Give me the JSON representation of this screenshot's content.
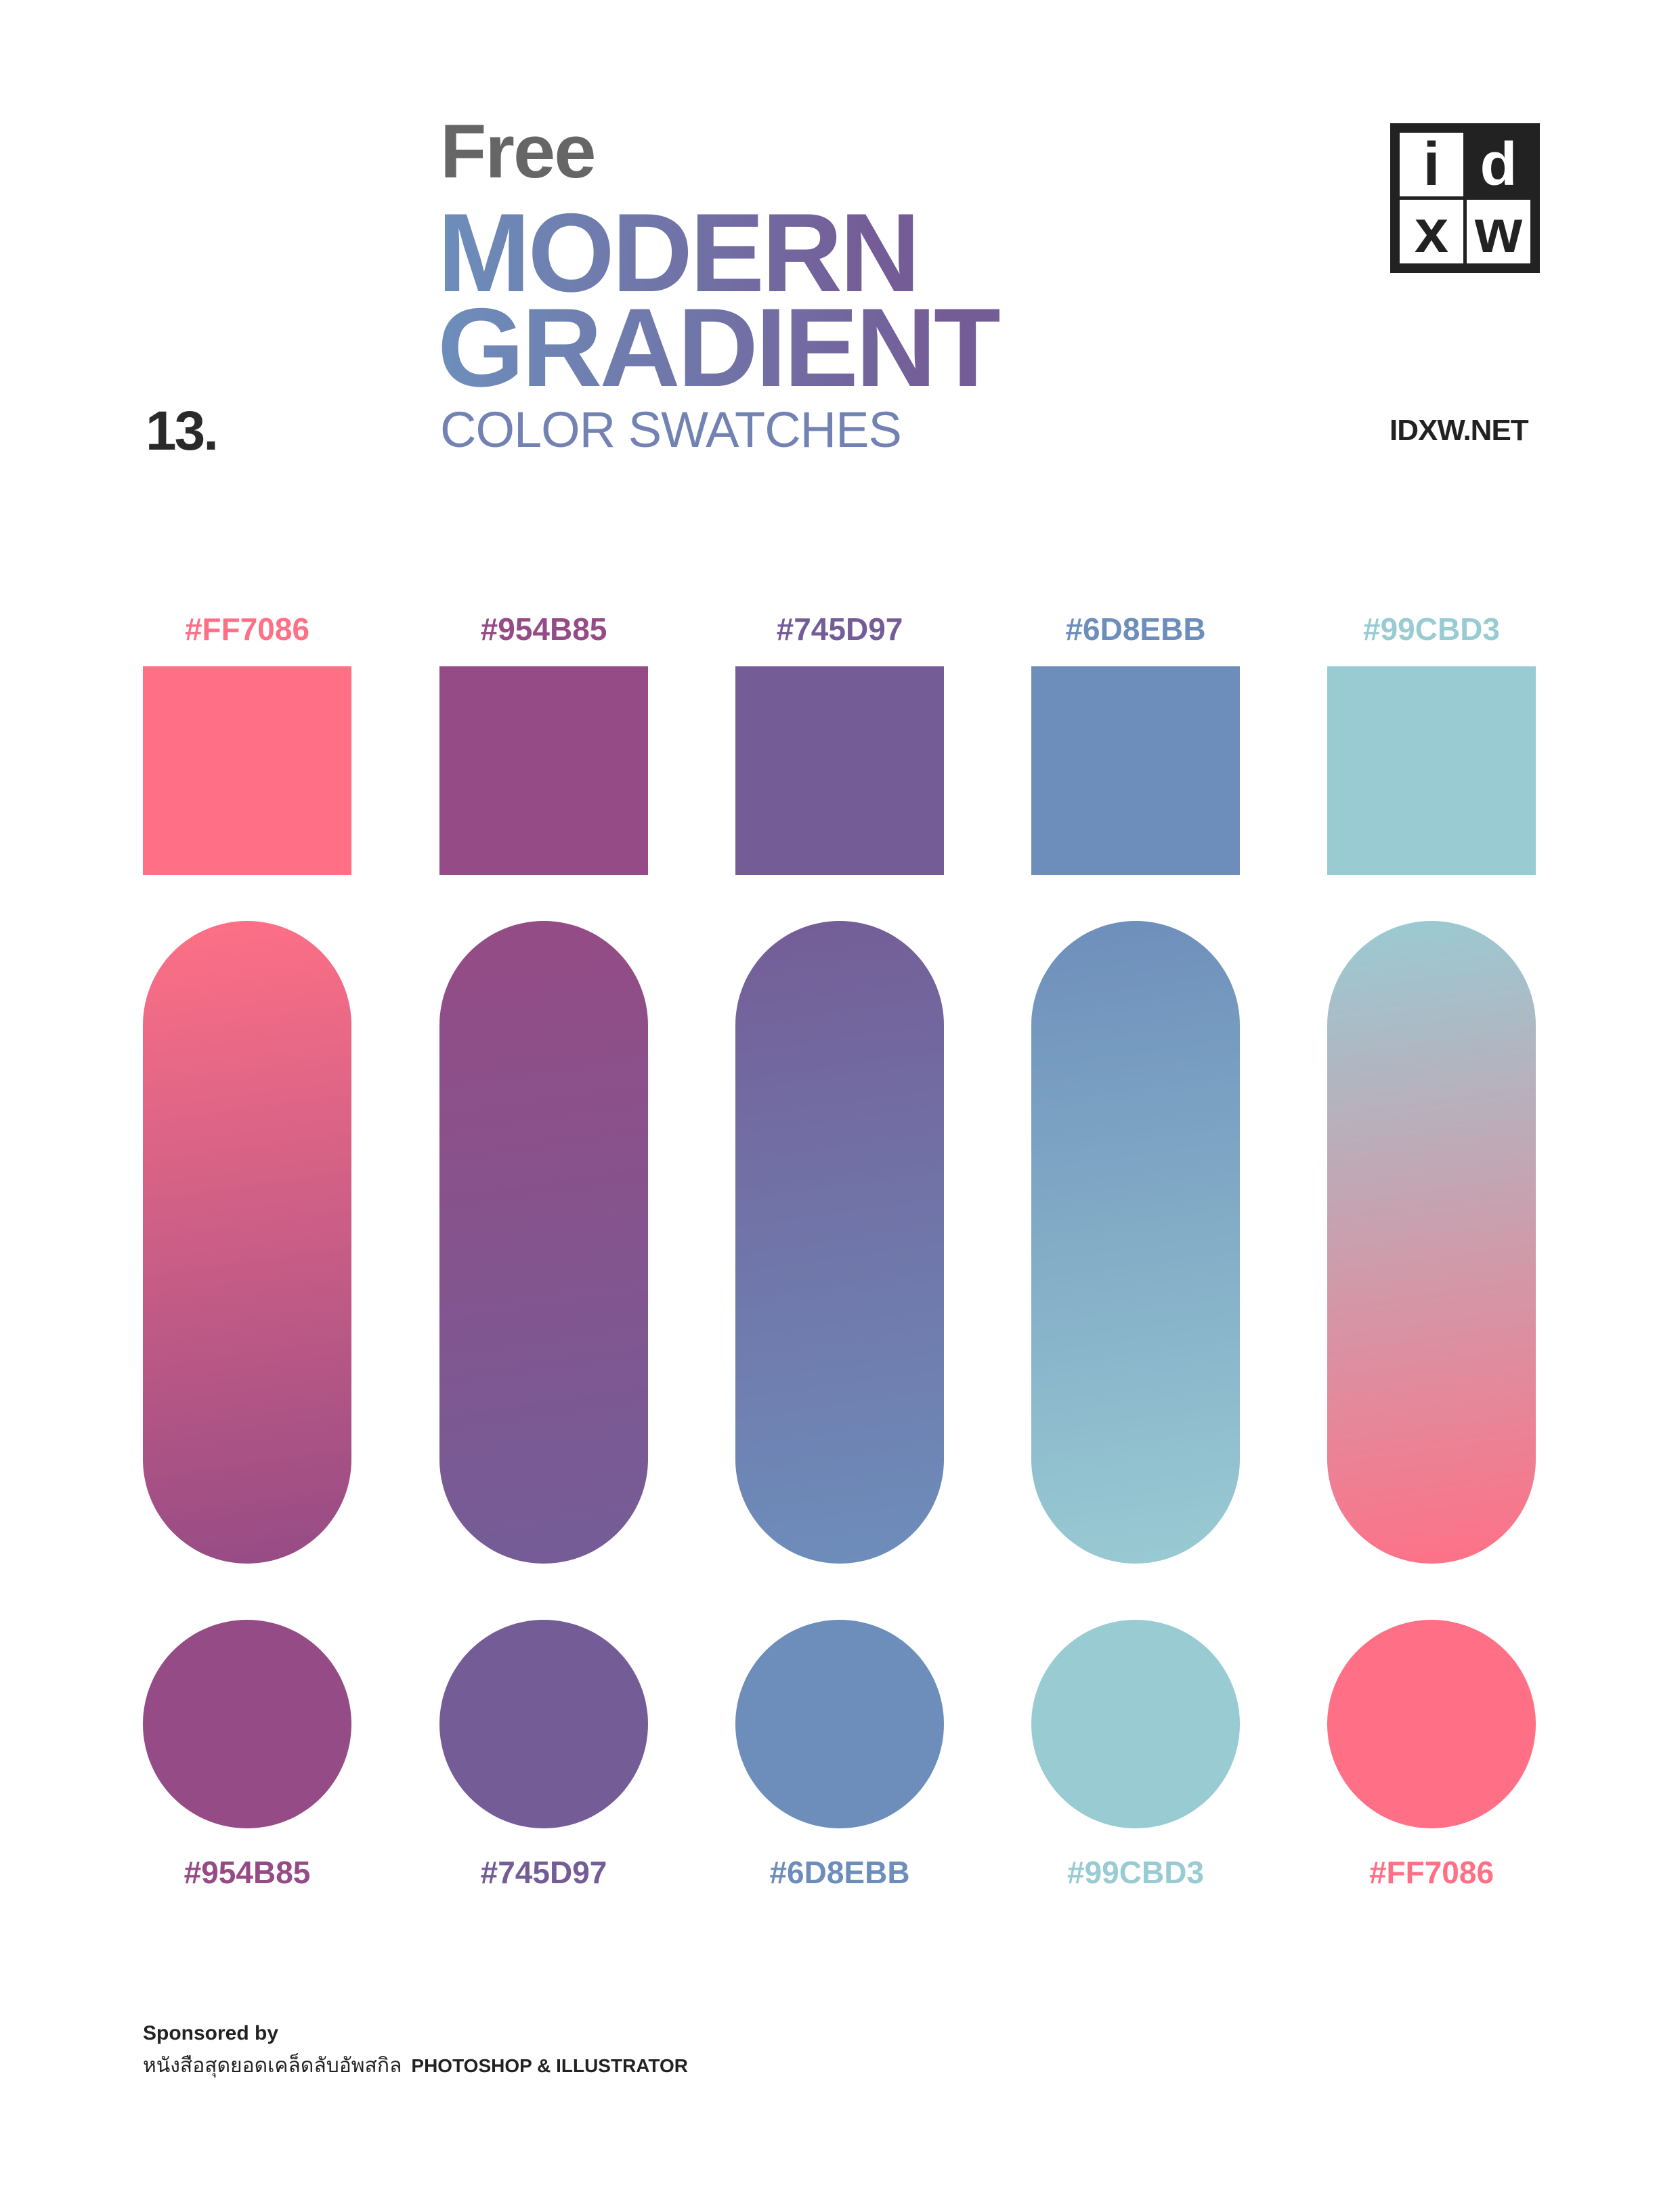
{
  "header": {
    "free": "Free",
    "title_line1": "MODERN",
    "title_line2": "GRADIENT",
    "subtitle": "COLOR SWATCHES",
    "number": "13.",
    "site": "IDXW.NET",
    "logo_letters": [
      "i",
      "d",
      "x",
      "w"
    ]
  },
  "swatches": [
    {
      "top_hex": "#FF7086",
      "bottom_hex": "#954B85"
    },
    {
      "top_hex": "#954B85",
      "bottom_hex": "#745D97"
    },
    {
      "top_hex": "#745D97",
      "bottom_hex": "#6D8EBB"
    },
    {
      "top_hex": "#6D8EBB",
      "bottom_hex": "#99CBD3"
    },
    {
      "top_hex": "#99CBD3",
      "bottom_hex": "#FF7086"
    }
  ],
  "footer": {
    "sponsored_by": "Sponsored by",
    "sponsor_thai": "หนังสือสุดยอดเคล็ดลับอัพสกิล",
    "sponsor_en": "PHOTOSHOP & ILLUSTRATOR"
  }
}
